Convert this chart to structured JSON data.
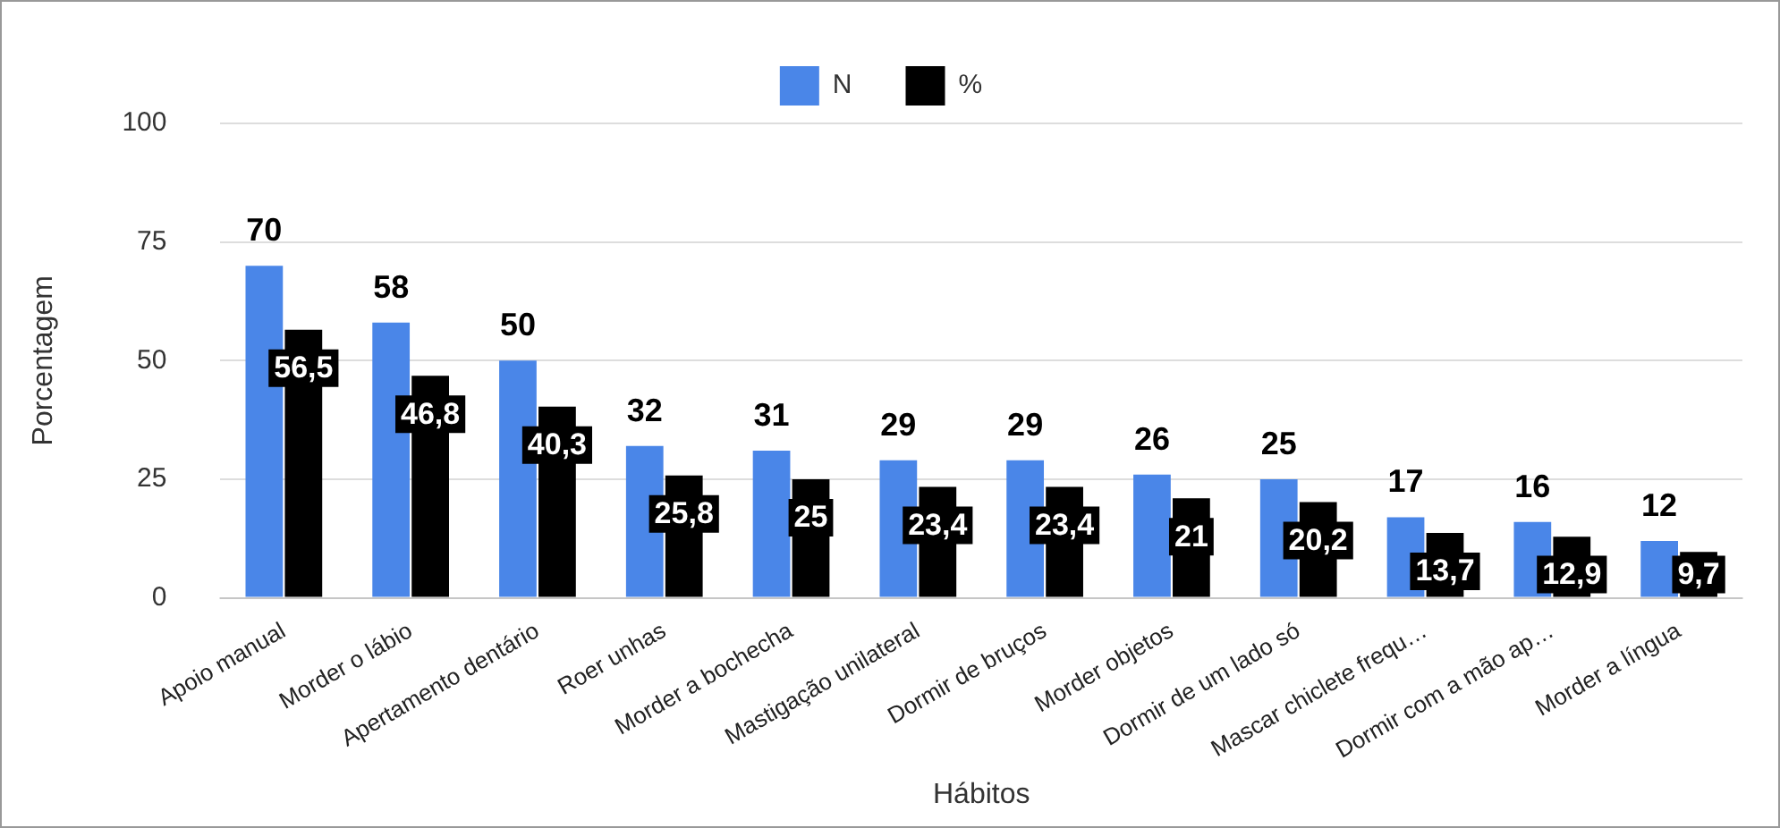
{
  "chart_data": {
    "type": "bar",
    "xlabel": "Hábitos",
    "ylabel": "Porcentagem",
    "categories": [
      "Apoio manual",
      "Morder o lábio",
      "Apertamento dentário",
      "Roer unhas",
      "Morder a bochecha",
      "Mastigação unilateral",
      "Dormir de bruços",
      "Morder objetos",
      "Dormir de um lado só",
      "Mascar chiclete frequ…",
      "Dormir com a mão ap…",
      "Morder a língua"
    ],
    "series": [
      {
        "name": "N",
        "color": "#4a86e8",
        "values": [
          70,
          58,
          50,
          32,
          31,
          29,
          29,
          26,
          25,
          17,
          16,
          12
        ],
        "value_labels": [
          "70",
          "58",
          "50",
          "32",
          "31",
          "29",
          "29",
          "26",
          "25",
          "17",
          "16",
          "12"
        ]
      },
      {
        "name": "%",
        "color": "#000000",
        "values": [
          56.5,
          46.8,
          40.3,
          25.8,
          25,
          23.4,
          23.4,
          21,
          20.2,
          13.7,
          12.9,
          9.7
        ],
        "value_labels": [
          "56,5",
          "46,8",
          "40,3",
          "25,8",
          "25",
          "23,4",
          "23,4",
          "21",
          "20,2",
          "13,7",
          "12,9",
          "9,7"
        ]
      }
    ],
    "ylim": [
      0,
      100
    ],
    "yticks": [
      0,
      25,
      50,
      75,
      100
    ],
    "grid": "y",
    "legend": "top"
  }
}
